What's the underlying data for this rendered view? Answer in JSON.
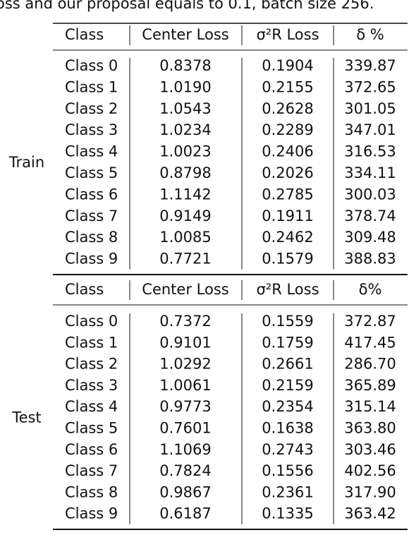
{
  "caption": "oss and our proposal equals to 0.1, batch size 256.",
  "sections": [
    {
      "label": "Train",
      "header": [
        "Class",
        "Center Loss",
        "σ²R Loss",
        "δ %"
      ],
      "rows": [
        [
          "Class 0",
          "0.8378",
          "0.1904",
          "339.87"
        ],
        [
          "Class 1",
          "1.0190",
          "0.2155",
          "372.65"
        ],
        [
          "Class 2",
          "1.0543",
          "0.2628",
          "301.05"
        ],
        [
          "Class 3",
          "1.0234",
          "0.2289",
          "347.01"
        ],
        [
          "Class 4",
          "1.0023",
          "0.2406",
          "316.53"
        ],
        [
          "Class 5",
          "0.8798",
          "0.2026",
          "334.11"
        ],
        [
          "Class 6",
          "1.1142",
          "0.2785",
          "300.03"
        ],
        [
          "Class 7",
          "0.9149",
          "0.1911",
          "378.74"
        ],
        [
          "Class 8",
          "1.0085",
          "0.2462",
          "309.48"
        ],
        [
          "Class 9",
          "0.7721",
          "0.1579",
          "388.83"
        ]
      ]
    },
    {
      "label": "Test",
      "header": [
        "Class",
        "Center Loss",
        "σ²R Loss",
        "δ%"
      ],
      "rows": [
        [
          "Class 0",
          "0.7372",
          "0.1559",
          "372.87"
        ],
        [
          "Class 1",
          "0.9101",
          "0.1759",
          "417.45"
        ],
        [
          "Class 2",
          "1.0292",
          "0.2661",
          "286.70"
        ],
        [
          "Class 3",
          "1.0061",
          "0.2159",
          "365.89"
        ],
        [
          "Class 4",
          "0.9773",
          "0.2354",
          "315.14"
        ],
        [
          "Class 5",
          "0.7601",
          "0.1638",
          "363.80"
        ],
        [
          "Class 6",
          "1.1069",
          "0.2743",
          "303.46"
        ],
        [
          "Class 7",
          "0.7824",
          "0.1556",
          "402.56"
        ],
        [
          "Class 8",
          "0.9867",
          "0.2361",
          "317.90"
        ],
        [
          "Class 9",
          "0.6187",
          "0.1335",
          "363.42"
        ]
      ]
    }
  ]
}
